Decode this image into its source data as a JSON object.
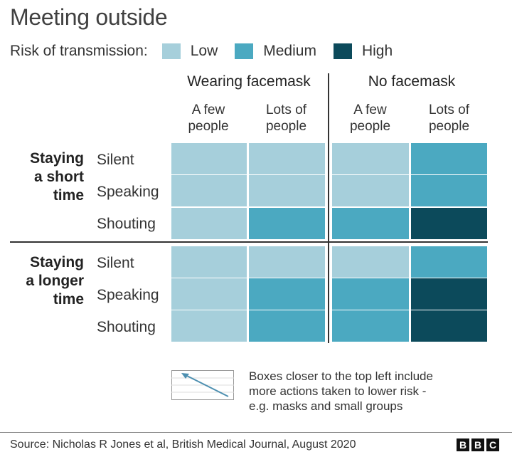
{
  "title": "Meeting outside",
  "legend": {
    "label": "Risk of transmission:",
    "items": [
      {
        "label": "Low",
        "color": "#a6cfdb"
      },
      {
        "label": "Medium",
        "color": "#4ba9c1"
      },
      {
        "label": "High",
        "color": "#0c4a5b"
      }
    ]
  },
  "chart_data": {
    "type": "heatmap",
    "title": "Meeting outside",
    "column_groups": [
      {
        "label": "Wearing facemask",
        "columns": [
          "A few people",
          "Lots of people"
        ]
      },
      {
        "label": "No facemask",
        "columns": [
          "A few people",
          "Lots of people"
        ]
      }
    ],
    "column_lines": [
      [
        "A few",
        "people"
      ],
      [
        "Lots of",
        "people"
      ],
      [
        "A few",
        "people"
      ],
      [
        "Lots of",
        "people"
      ]
    ],
    "row_groups": [
      {
        "label_lines": [
          "Staying",
          "a short",
          "time"
        ],
        "rows": [
          "Silent",
          "Speaking",
          "Shouting"
        ]
      },
      {
        "label_lines": [
          "Staying",
          "a longer",
          "time"
        ],
        "rows": [
          "Silent",
          "Speaking",
          "Shouting"
        ]
      }
    ],
    "levels": [
      "Low",
      "Medium",
      "High"
    ],
    "values": [
      [
        "Low",
        "Low",
        "Low",
        "Medium"
      ],
      [
        "Low",
        "Low",
        "Low",
        "Medium"
      ],
      [
        "Low",
        "Medium",
        "Medium",
        "High"
      ],
      [
        "Low",
        "Low",
        "Low",
        "Medium"
      ],
      [
        "Low",
        "Medium",
        "Medium",
        "High"
      ],
      [
        "Low",
        "Medium",
        "Medium",
        "High"
      ]
    ]
  },
  "note": [
    "Boxes closer to the top left include",
    "more actions taken to lower risk -",
    "e.g. masks and small groups"
  ],
  "source": "Source: Nicholas R Jones et al, British Medical Journal, August 2020",
  "logo": [
    "B",
    "B",
    "C"
  ]
}
